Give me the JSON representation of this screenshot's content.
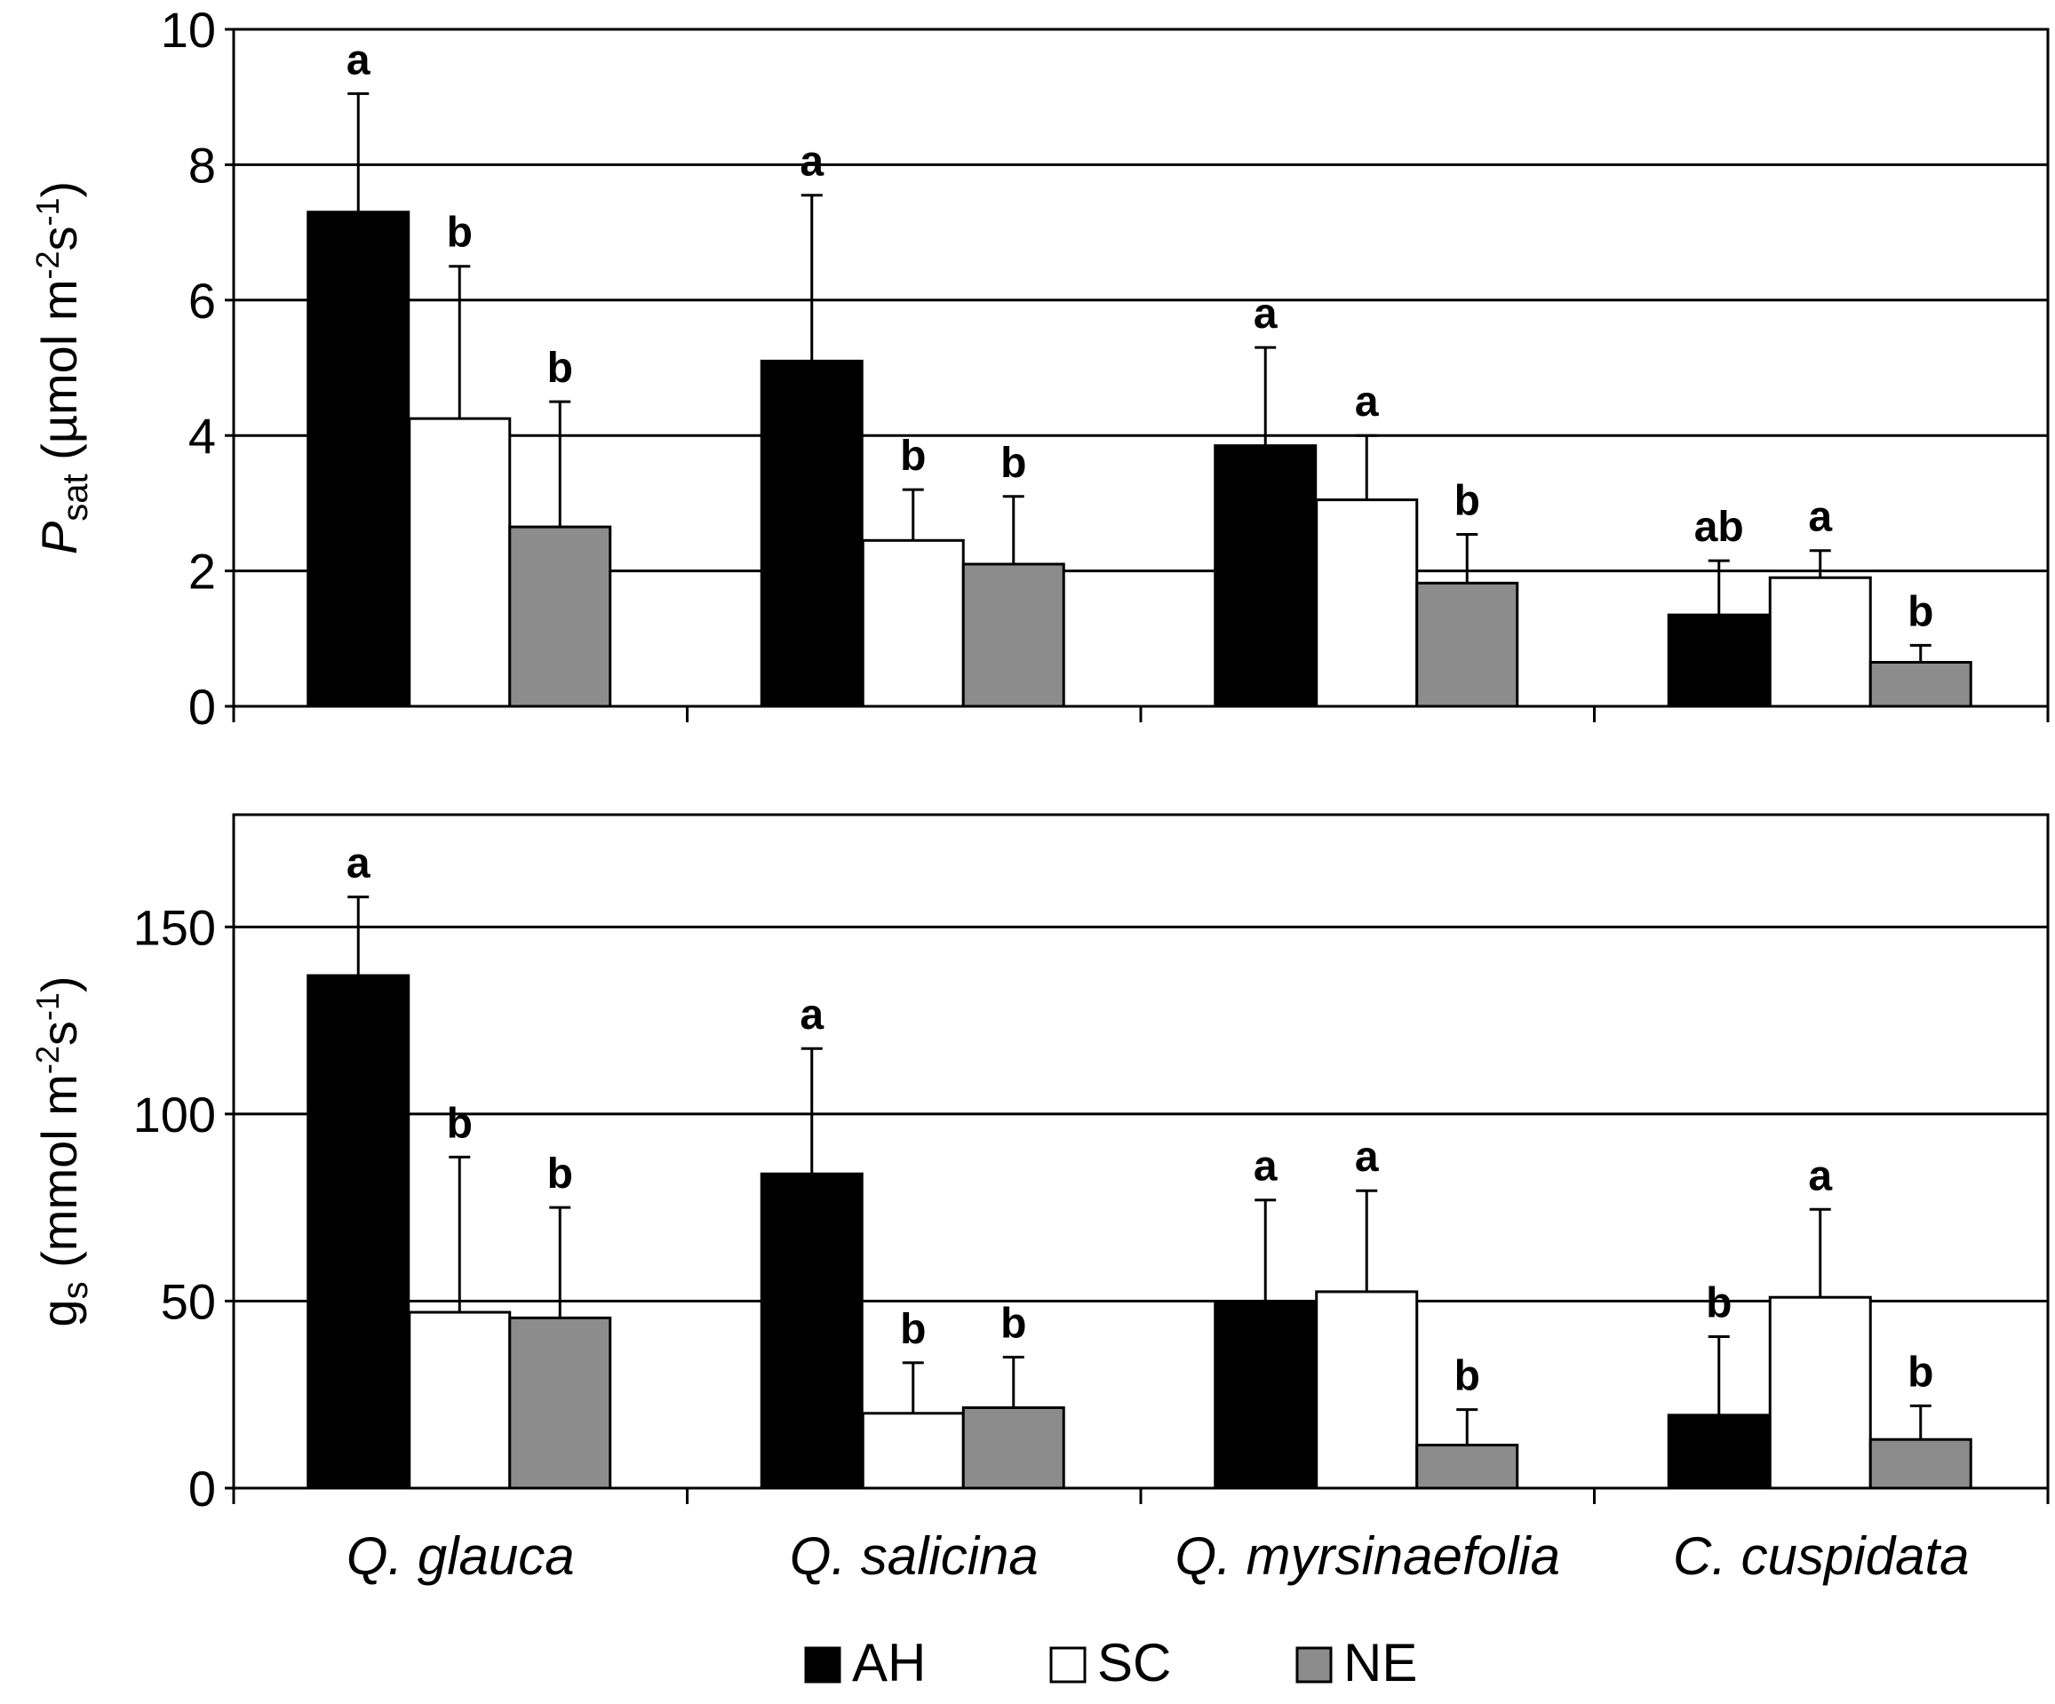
{
  "chart_data": [
    {
      "type": "bar",
      "id": "psat",
      "title": "",
      "ylabel": {
        "main": "P",
        "sub": "sat",
        "unit_pre": " (µmol m",
        "sup1": "-2",
        "mid": "s",
        "sup2": "-1",
        "unit_post": ")"
      },
      "ylim": [
        0,
        10
      ],
      "yticks": [
        0,
        2,
        4,
        6,
        8,
        10
      ],
      "grid": true,
      "categories": [
        "Q. glauca",
        "Q. salicina",
        "Q. myrsinaefolia",
        "C. cuspidata"
      ],
      "series": [
        {
          "name": "AH",
          "color": "#000000",
          "values": [
            7.3,
            5.1,
            3.85,
            1.35
          ],
          "errors": [
            1.75,
            2.45,
            1.45,
            0.8
          ],
          "letters": [
            "a",
            "a",
            "a",
            "ab"
          ]
        },
        {
          "name": "SC",
          "color": "#ffffff",
          "values": [
            4.25,
            2.45,
            3.05,
            1.9
          ],
          "errors": [
            2.25,
            0.75,
            0.95,
            0.4
          ],
          "letters": [
            "b",
            "b",
            "a",
            "a"
          ]
        },
        {
          "name": "NE",
          "color": "#8c8c8c",
          "values": [
            2.65,
            2.1,
            1.82,
            0.65
          ],
          "errors": [
            1.85,
            1.0,
            0.72,
            0.25
          ],
          "letters": [
            "b",
            "b",
            "b",
            "b"
          ]
        }
      ]
    },
    {
      "type": "bar",
      "id": "gs",
      "title": "",
      "ylabel": {
        "main": "g",
        "sub": "s",
        "unit_pre": " (mmol m",
        "sup1": "-2",
        "mid": "s",
        "sup2": "-1",
        "unit_post": ")"
      },
      "ylim": [
        0,
        180
      ],
      "yticks": [
        0,
        50,
        100,
        150
      ],
      "grid": true,
      "categories": [
        "Q. glauca",
        "Q. salicina",
        "Q. myrsinaefolia",
        "C. cuspidata"
      ],
      "series": [
        {
          "name": "AH",
          "color": "#000000",
          "values": [
            137,
            84,
            49.5,
            19.5
          ],
          "errors": [
            21,
            33.5,
            27.5,
            21
          ],
          "letters": [
            "a",
            "a",
            "a",
            "b"
          ]
        },
        {
          "name": "SC",
          "color": "#ffffff",
          "values": [
            47,
            20,
            52.5,
            51
          ],
          "errors": [
            41.5,
            13.5,
            27,
            23.5
          ],
          "letters": [
            "b",
            "b",
            "a",
            "a"
          ]
        },
        {
          "name": "NE",
          "color": "#8c8c8c",
          "values": [
            45.5,
            21.5,
            11.5,
            13
          ],
          "errors": [
            29.5,
            13.5,
            9.5,
            9
          ],
          "letters": [
            "b",
            "b",
            "b",
            "b"
          ]
        }
      ]
    }
  ],
  "legend": [
    {
      "label": "AH",
      "color": "#000000"
    },
    {
      "label": "SC",
      "color": "#ffffff"
    },
    {
      "label": "NE",
      "color": "#8c8c8c"
    }
  ]
}
